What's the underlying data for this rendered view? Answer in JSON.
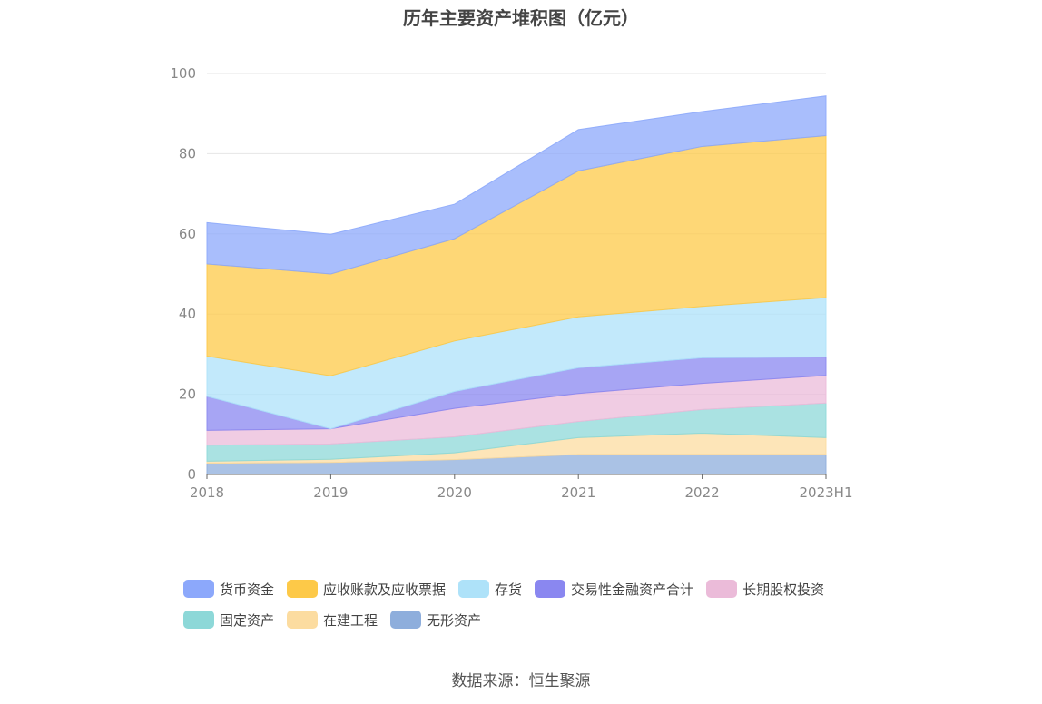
{
  "chart_data": {
    "type": "area",
    "stacked": true,
    "title": "历年主要资产堆积图（亿元）",
    "x": [
      "2018",
      "2019",
      "2020",
      "2021",
      "2022",
      "2023H1"
    ],
    "ylim": [
      0,
      100
    ],
    "yticks": [
      "0",
      "20",
      "40",
      "60",
      "80",
      "100"
    ],
    "grid": true,
    "legend_position": "bottom",
    "series": [
      {
        "name": "无形资产",
        "color": "#8eaedc",
        "values": [
          2.8,
          3.0,
          3.7,
          5.0,
          5.0,
          5.0
        ]
      },
      {
        "name": "在建工程",
        "color": "#fcdca0",
        "values": [
          0.5,
          0.8,
          1.7,
          4.2,
          5.3,
          4.2
        ]
      },
      {
        "name": "固定资产",
        "color": "#8dd8d8",
        "values": [
          4.0,
          3.8,
          4.0,
          4.0,
          5.9,
          8.6
        ]
      },
      {
        "name": "长期股权投资",
        "color": "#ebbbd9",
        "values": [
          3.7,
          3.8,
          7.1,
          7.0,
          6.5,
          6.9
        ]
      },
      {
        "name": "交易性金融资产合计",
        "color": "#8a87f0",
        "values": [
          8.5,
          0.0,
          4.2,
          6.4,
          6.4,
          4.6
        ]
      },
      {
        "name": "存货",
        "color": "#aee2f9",
        "values": [
          10.0,
          13.2,
          12.6,
          12.7,
          12.8,
          14.8
        ]
      },
      {
        "name": "应收账款及应收票据",
        "color": "#fdc948",
        "values": [
          23.0,
          25.4,
          25.5,
          36.4,
          39.9,
          40.4
        ]
      },
      {
        "name": "货币资金",
        "color": "#8ca8fb",
        "values": [
          10.3,
          9.9,
          8.6,
          10.3,
          8.7,
          9.9
        ]
      }
    ],
    "legend_order": [
      "货币资金",
      "应收账款及应收票据",
      "存货",
      "交易性金融资产合计",
      "长期股权投资",
      "固定资产",
      "在建工程",
      "无形资产"
    ]
  },
  "source": "数据来源：恒生聚源"
}
